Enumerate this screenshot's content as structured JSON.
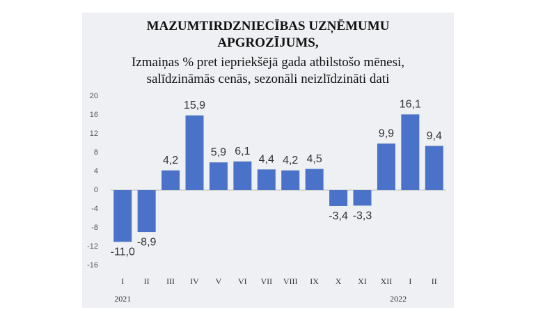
{
  "chart_data": {
    "type": "bar",
    "title": "MAZUMTIRDZNIECĪBAS UZŅĒMUMU APGROZĪJUMS,",
    "subtitle": "Izmaiņas % pret iepriekšējā gada atbilstošo mēnesi, salīdzināmās cenās, sezonāli neizlīdzināti dati",
    "categories": [
      "I",
      "II",
      "III",
      "IV",
      "V",
      "VI",
      "VII",
      "VIII",
      "IX",
      "X",
      "XI",
      "XII",
      "I",
      "II"
    ],
    "values": [
      -11.0,
      -8.9,
      4.2,
      15.9,
      5.9,
      6.1,
      4.4,
      4.2,
      4.5,
      -3.4,
      -3.3,
      9.9,
      16.1,
      9.4
    ],
    "value_labels": [
      "-11,0",
      "-8,9",
      "4,2",
      "15,9",
      "5,9",
      "6,1",
      "4,4",
      "4,2",
      "4,5",
      "-3,4",
      "-3,3",
      "9,9",
      "16,1",
      "9,4"
    ],
    "years": [
      "2021",
      "2022"
    ],
    "color": "#4a72c8",
    "ylim": [
      -16,
      20
    ],
    "yticks": [
      -16,
      -12,
      -8,
      -4,
      0,
      4,
      8,
      12,
      16,
      20
    ]
  }
}
